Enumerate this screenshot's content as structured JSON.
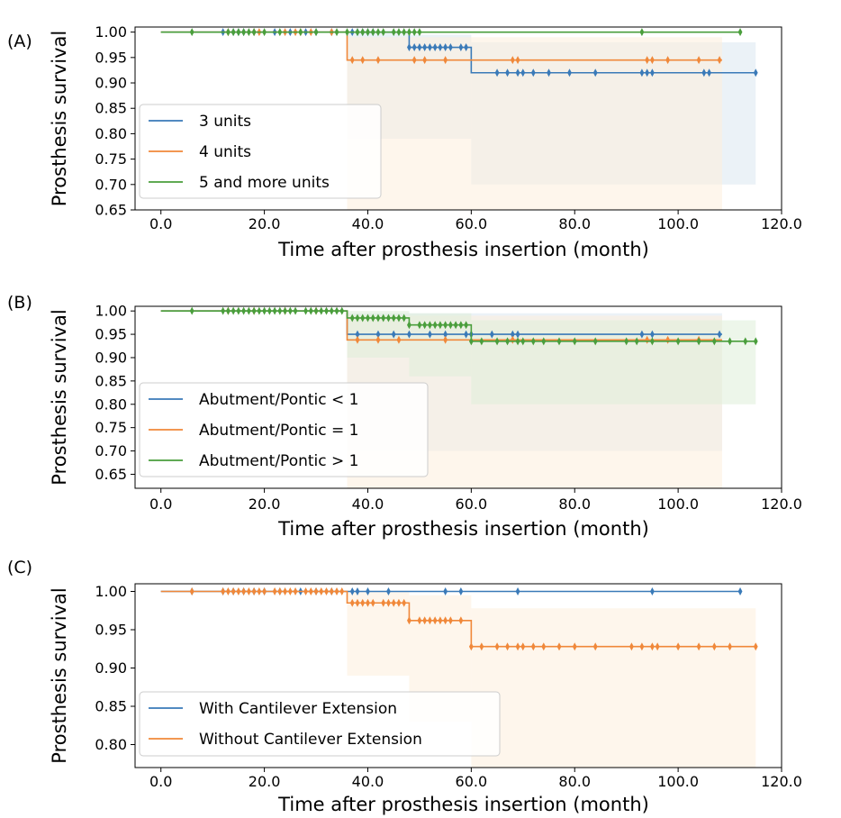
{
  "colors": {
    "blue": "#3a7ab8",
    "orange": "#f0883a",
    "green": "#4a9e3c",
    "ci_blue": "#dbe7f1",
    "ci_orange": "#fdeedd",
    "ci_green": "#deeed8"
  },
  "chart_data": [
    {
      "type": "line",
      "panel_label": "(A)",
      "title": "",
      "xlabel": "Time after prosthesis insertion (month)",
      "ylabel": "Prosthesis survival",
      "xlim": [
        -5,
        120
      ],
      "ylim": [
        0.65,
        1.01
      ],
      "xticks": [
        0,
        20,
        40,
        60,
        80,
        100,
        120
      ],
      "xtick_labels": [
        "0.0",
        "20.0",
        "40.0",
        "60.0",
        "80.0",
        "100.0",
        "120.0"
      ],
      "yticks": [
        0.65,
        0.7,
        0.75,
        0.8,
        0.85,
        0.9,
        0.95,
        1.0
      ],
      "ytick_labels": [
        "0.65",
        "0.70",
        "0.75",
        "0.80",
        "0.85",
        "0.90",
        "0.95",
        "1.00"
      ],
      "legend_position": "lower-left",
      "series": [
        {
          "name": "3 units",
          "color_key": "blue",
          "steps": [
            [
              0,
              1.0
            ],
            [
              48,
              0.97
            ],
            [
              60,
              0.92
            ],
            [
              115,
              0.92
            ]
          ],
          "censored_x": [
            12,
            14,
            15,
            16,
            18,
            22,
            25,
            28,
            30,
            33,
            37,
            38,
            39,
            40,
            41,
            48,
            49,
            50,
            51,
            52,
            53,
            54,
            55,
            56,
            58,
            59,
            65,
            67,
            69,
            70,
            72,
            75,
            79,
            84,
            93,
            94,
            95,
            105,
            106,
            115
          ],
          "ci": [
            [
              36,
              48,
              0.79,
              1.0
            ],
            [
              48,
              60,
              0.79,
              0.995
            ],
            [
              60,
              115,
              0.7,
              0.98
            ]
          ]
        },
        {
          "name": "4 units",
          "color_key": "orange",
          "steps": [
            [
              0,
              1.0
            ],
            [
              36,
              0.945
            ],
            [
              108.5,
              0.945
            ]
          ],
          "censored_x": [
            13,
            18,
            19,
            24,
            26,
            27,
            29,
            33,
            37,
            39,
            42,
            49,
            51,
            55,
            68,
            69,
            94,
            95,
            98,
            104,
            108
          ],
          "ci": [
            [
              36,
              108.5,
              0.65,
              0.99
            ]
          ]
        },
        {
          "name": "5 and more units",
          "color_key": "green",
          "steps": [
            [
              0,
              1.0
            ],
            [
              112,
              1.0
            ]
          ],
          "censored_x": [
            6,
            13,
            14,
            15,
            16,
            17,
            18,
            20,
            23,
            27,
            30,
            34,
            36,
            38,
            39,
            40,
            41,
            42,
            43,
            45,
            46,
            47,
            48,
            49,
            50,
            93,
            112
          ],
          "ci": []
        }
      ]
    },
    {
      "type": "line",
      "panel_label": "(B)",
      "title": "",
      "xlabel": "Time after prosthesis insertion (month)",
      "ylabel": "Prosthesis survival",
      "xlim": [
        -5,
        120
      ],
      "ylim": [
        0.62,
        1.01
      ],
      "xticks": [
        0,
        20,
        40,
        60,
        80,
        100,
        120
      ],
      "xtick_labels": [
        "0.0",
        "20.0",
        "40.0",
        "60.0",
        "80.0",
        "100.0",
        "120.0"
      ],
      "yticks": [
        0.65,
        0.7,
        0.75,
        0.8,
        0.85,
        0.9,
        0.95,
        1.0
      ],
      "ytick_labels": [
        "0.65",
        "0.70",
        "0.75",
        "0.80",
        "0.85",
        "0.90",
        "0.95",
        "1.00"
      ],
      "legend_position": "lower-left",
      "series": [
        {
          "name": "Abutment/Pontic < 1",
          "color_key": "blue",
          "steps": [
            [
              0,
              1.0
            ],
            [
              36,
              0.95
            ],
            [
              108.5,
              0.95
            ]
          ],
          "censored_x": [
            38,
            42,
            45,
            48,
            52,
            55,
            59,
            60,
            64,
            68,
            69,
            93,
            95,
            108
          ],
          "ci": [
            [
              36,
              108.5,
              0.7,
              0.995
            ]
          ]
        },
        {
          "name": "Abutment/Pontic = 1",
          "color_key": "orange",
          "steps": [
            [
              0,
              1.0
            ],
            [
              36,
              0.938
            ],
            [
              108.5,
              0.938
            ]
          ],
          "censored_x": [
            13,
            18,
            24,
            30,
            38,
            42,
            46,
            55,
            68,
            94,
            98,
            104
          ],
          "ci": [
            [
              36,
              108.5,
              0.62,
              0.99
            ]
          ]
        },
        {
          "name": "Abutment/Pontic > 1",
          "color_key": "green",
          "steps": [
            [
              0,
              1.0
            ],
            [
              36,
              0.985
            ],
            [
              48,
              0.97
            ],
            [
              60,
              0.935
            ],
            [
              115,
              0.935
            ]
          ],
          "censored_x": [
            6,
            12,
            13,
            14,
            15,
            16,
            17,
            18,
            19,
            20,
            21,
            22,
            23,
            24,
            25,
            26,
            28,
            29,
            30,
            31,
            32,
            33,
            34,
            35,
            37,
            38,
            39,
            40,
            41,
            42,
            43,
            44,
            45,
            46,
            47,
            48,
            50,
            51,
            52,
            53,
            54,
            55,
            56,
            57,
            58,
            59,
            60,
            62,
            65,
            67,
            69,
            70,
            72,
            74,
            77,
            80,
            84,
            90,
            92,
            95,
            100,
            104,
            107,
            110,
            113,
            115
          ],
          "ci": [
            [
              36,
              48,
              0.9,
              1.0
            ],
            [
              48,
              60,
              0.86,
              0.995
            ],
            [
              60,
              115,
              0.8,
              0.98
            ]
          ]
        }
      ]
    },
    {
      "type": "line",
      "panel_label": "(C)",
      "title": "",
      "xlabel": "Time after prosthesis insertion (month)",
      "ylabel": "Prosthesis survival",
      "xlim": [
        -5,
        120
      ],
      "ylim": [
        0.77,
        1.01
      ],
      "xticks": [
        0,
        20,
        40,
        60,
        80,
        100,
        120
      ],
      "xtick_labels": [
        "0.0",
        "20.0",
        "40.0",
        "60.0",
        "80.0",
        "100.0",
        "120.0"
      ],
      "yticks": [
        0.8,
        0.85,
        0.9,
        0.95,
        1.0
      ],
      "ytick_labels": [
        "0.80",
        "0.85",
        "0.90",
        "0.95",
        "1.00"
      ],
      "legend_position": "lower-left",
      "series": [
        {
          "name": "With Cantilever Extension",
          "color_key": "blue",
          "steps": [
            [
              0,
              1.0
            ],
            [
              112,
              1.0
            ]
          ],
          "censored_x": [
            6,
            12,
            14,
            16,
            18,
            20,
            23,
            27,
            30,
            33,
            37,
            38,
            40,
            44,
            55,
            58,
            69,
            95,
            112
          ],
          "ci": []
        },
        {
          "name": "Without Cantilever Extension",
          "color_key": "orange",
          "steps": [
            [
              0,
              1.0
            ],
            [
              36,
              0.985
            ],
            [
              48,
              0.962
            ],
            [
              60,
              0.928
            ],
            [
              115,
              0.928
            ]
          ],
          "censored_x": [
            6,
            12,
            13,
            14,
            15,
            16,
            17,
            18,
            19,
            20,
            22,
            23,
            24,
            25,
            26,
            28,
            29,
            30,
            31,
            32,
            33,
            34,
            35,
            37,
            38,
            39,
            40,
            41,
            43,
            44,
            45,
            46,
            47,
            48,
            50,
            51,
            52,
            53,
            54,
            55,
            56,
            58,
            60,
            62,
            65,
            67,
            69,
            70,
            72,
            74,
            77,
            80,
            84,
            91,
            93,
            95,
            96,
            100,
            104,
            107,
            110,
            115
          ],
          "ci": [
            [
              36,
              48,
              0.89,
              1.0
            ],
            [
              48,
              60,
              0.83,
              0.995
            ],
            [
              60,
              115,
              0.77,
              0.978
            ]
          ]
        }
      ]
    }
  ]
}
